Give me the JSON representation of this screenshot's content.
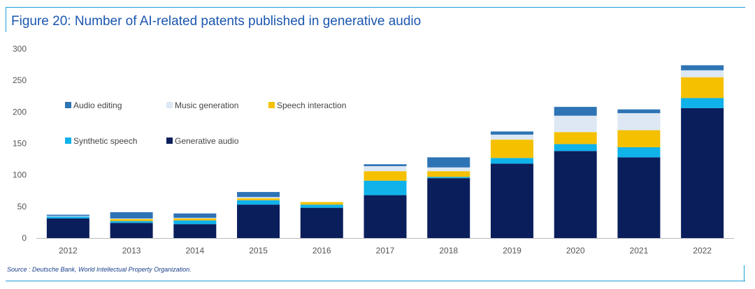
{
  "title": "Figure 20: Number of AI-related patents published in generative audio",
  "source": "Source : Deutsche Bank, World Intellectual Property Organization.",
  "chart_data": {
    "type": "bar",
    "stacked": true,
    "categories": [
      "2012",
      "2013",
      "2014",
      "2015",
      "2016",
      "2017",
      "2018",
      "2019",
      "2020",
      "2021",
      "2022"
    ],
    "ylim": [
      0,
      300
    ],
    "yticks": [
      0,
      50,
      100,
      150,
      200,
      250,
      300
    ],
    "grid": false,
    "legend_position": "upper-left",
    "series": [
      {
        "name": "Generative audio",
        "color": "#0a1e5c",
        "values": [
          31,
          24,
          22,
          53,
          48,
          68,
          95,
          118,
          138,
          128,
          206
        ]
      },
      {
        "name": "Synthetic speech",
        "color": "#10b2ea",
        "values": [
          3,
          3,
          6,
          7,
          5,
          23,
          2,
          9,
          11,
          16,
          16
        ]
      },
      {
        "name": "Speech interaction",
        "color": "#f5c000",
        "values": [
          0,
          3,
          3,
          3,
          4,
          15,
          9,
          29,
          19,
          27,
          33
        ]
      },
      {
        "name": "Music generation",
        "color": "#dde8f4",
        "values": [
          1,
          1,
          1,
          2,
          0,
          8,
          6,
          8,
          26,
          27,
          11
        ]
      },
      {
        "name": "Audio editing",
        "color": "#2e74b5",
        "values": [
          2,
          10,
          7,
          8,
          0,
          3,
          16,
          5,
          14,
          6,
          8
        ]
      }
    ]
  }
}
